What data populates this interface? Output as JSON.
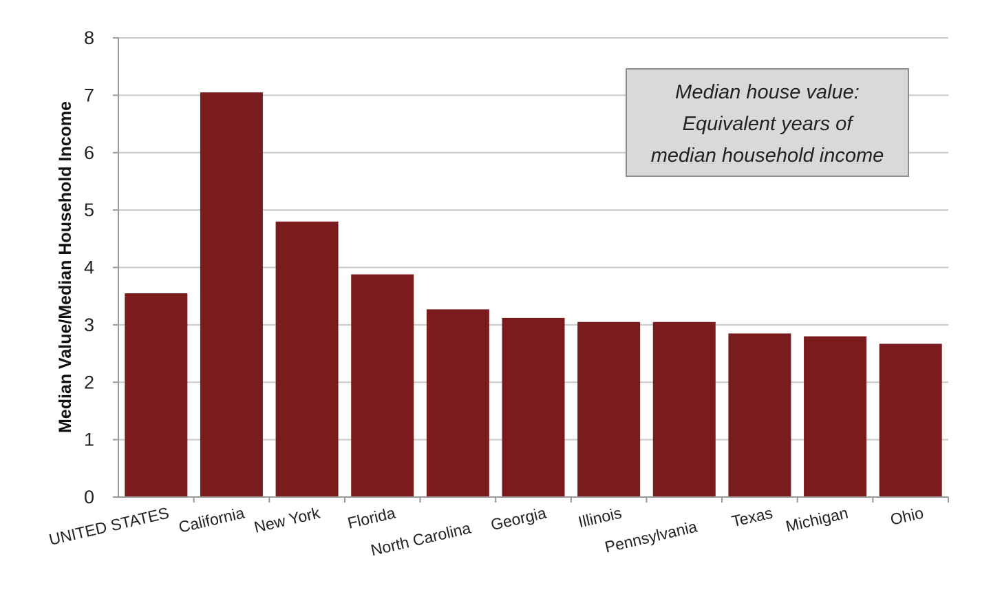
{
  "chart_data": {
    "type": "bar",
    "categories": [
      "UNITED STATES",
      "California",
      "New York",
      "Florida",
      "North Carolina",
      "Georgia",
      "Illinois",
      "Pennsylvania",
      "Texas",
      "Michigan",
      "Ohio"
    ],
    "values": [
      3.55,
      7.05,
      4.8,
      3.88,
      3.27,
      3.12,
      3.05,
      3.05,
      2.85,
      2.8,
      2.67
    ],
    "ylabel": "Median Value/Median Household Income",
    "xlabel": "",
    "ylim": [
      0,
      8
    ],
    "yticks": [
      "0",
      "1",
      "2",
      "3",
      "4",
      "5",
      "6",
      "7",
      "8"
    ],
    "grid": true,
    "annotation": [
      "Median house value:",
      "Equivalent years of",
      "median household income"
    ],
    "colors": {
      "bar": "#7a1c1e",
      "grid": "#c8c8c8",
      "axis": "#999999",
      "annotation_fill": "#d9d9d9",
      "annotation_border": "#8c8c8c"
    }
  }
}
